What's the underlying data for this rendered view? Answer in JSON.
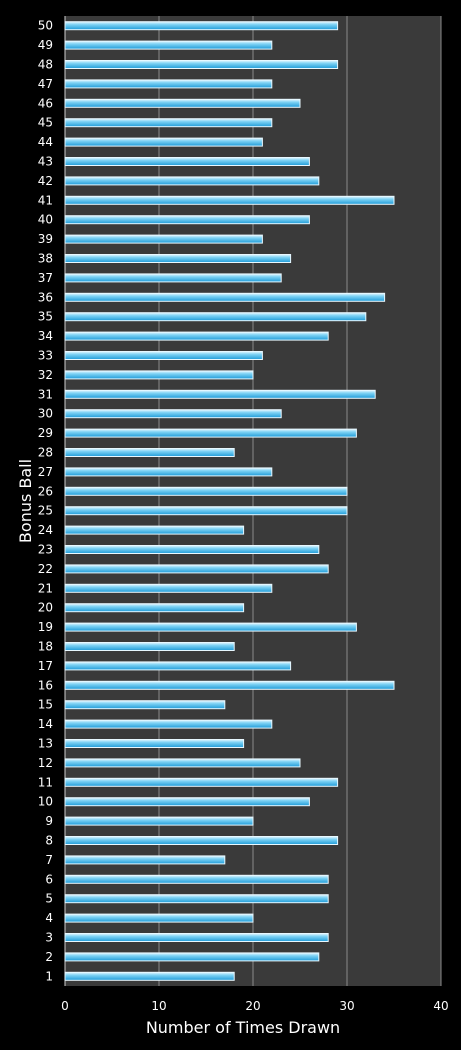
{
  "chart_data": {
    "type": "bar",
    "orientation": "horizontal",
    "title": "",
    "xlabel": "Number of Times Drawn",
    "ylabel": "Bonus Ball",
    "xlim": [
      0,
      40
    ],
    "xticks": [
      0,
      10,
      20,
      30,
      40
    ],
    "grid": true,
    "colors": {
      "background": "#000000",
      "plot": "#3a3a3a",
      "bar": "#29a8e0",
      "bar_highlight": "#bfeaff",
      "gridline": "#8a8a8a",
      "text": "#ffffff"
    },
    "categories": [
      "1",
      "2",
      "3",
      "4",
      "5",
      "6",
      "7",
      "8",
      "9",
      "10",
      "11",
      "12",
      "13",
      "14",
      "15",
      "16",
      "17",
      "18",
      "19",
      "20",
      "21",
      "22",
      "23",
      "24",
      "25",
      "26",
      "27",
      "28",
      "29",
      "30",
      "31",
      "32",
      "33",
      "34",
      "35",
      "36",
      "37",
      "38",
      "39",
      "40",
      "41",
      "42",
      "43",
      "44",
      "45",
      "46",
      "47",
      "48",
      "49",
      "50"
    ],
    "values": [
      18,
      27,
      28,
      20,
      28,
      28,
      17,
      29,
      20,
      26,
      29,
      25,
      19,
      22,
      17,
      35,
      24,
      18,
      31,
      19,
      22,
      28,
      27,
      19,
      30,
      30,
      22,
      18,
      31,
      23,
      33,
      20,
      21,
      28,
      32,
      34,
      23,
      24,
      21,
      26,
      35,
      27,
      26,
      21,
      22,
      25,
      22,
      29,
      22,
      29
    ]
  }
}
